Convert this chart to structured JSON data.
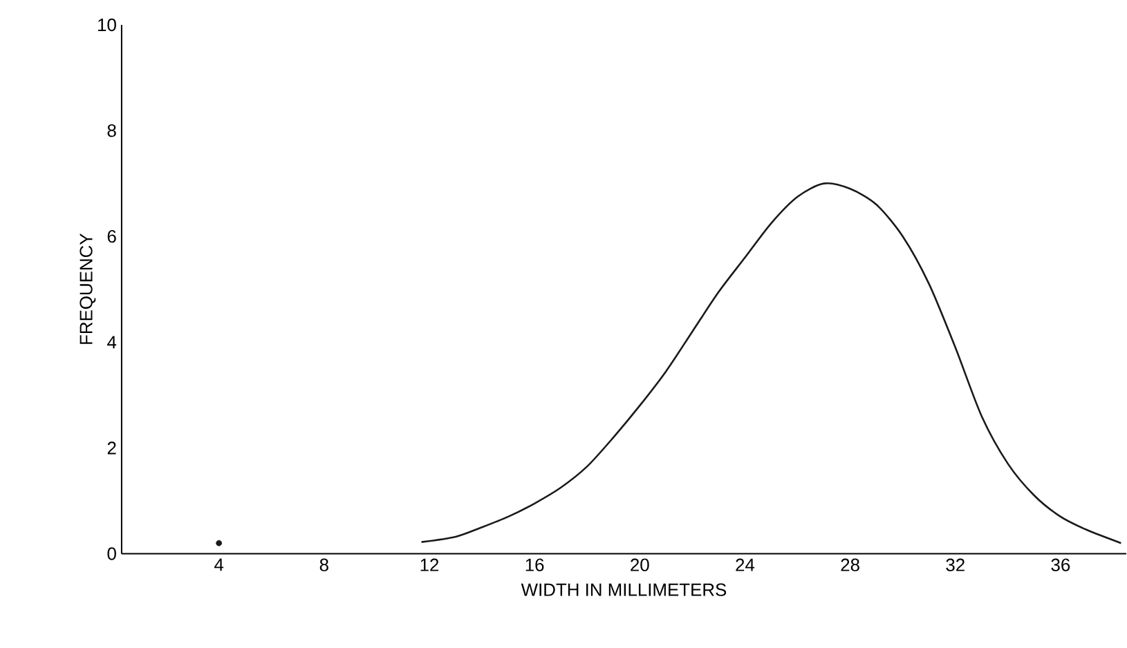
{
  "chart_data": {
    "type": "line",
    "xlabel": "WIDTH IN MILLIMETERS",
    "ylabel": "FREQUENCY",
    "xlim": [
      0.3,
      38.5
    ],
    "ylim": [
      0,
      10
    ],
    "xticks": [
      4,
      8,
      12,
      16,
      20,
      24,
      28,
      32,
      36
    ],
    "yticks": [
      0,
      2,
      4,
      6,
      8,
      10
    ],
    "grid": false,
    "series": [
      {
        "color": "#1a1a1a",
        "marker": "none",
        "x": [
          11.7,
          13,
          14,
          15,
          16,
          17,
          18,
          19,
          20,
          21,
          22,
          23,
          24,
          25,
          26,
          27,
          28,
          29,
          30,
          31,
          32,
          33,
          34,
          35,
          36,
          37,
          38.3
        ],
        "values": [
          0.22,
          0.32,
          0.5,
          0.7,
          0.95,
          1.25,
          1.65,
          2.2,
          2.8,
          3.45,
          4.2,
          4.95,
          5.6,
          6.25,
          6.75,
          7.0,
          6.9,
          6.6,
          6.0,
          5.1,
          3.9,
          2.6,
          1.7,
          1.1,
          0.7,
          0.45,
          0.2
        ]
      },
      {
        "type": "scatter",
        "color": "#1a1a1a",
        "marker": "circle",
        "x": [
          4
        ],
        "values": [
          0.2
        ]
      }
    ]
  }
}
